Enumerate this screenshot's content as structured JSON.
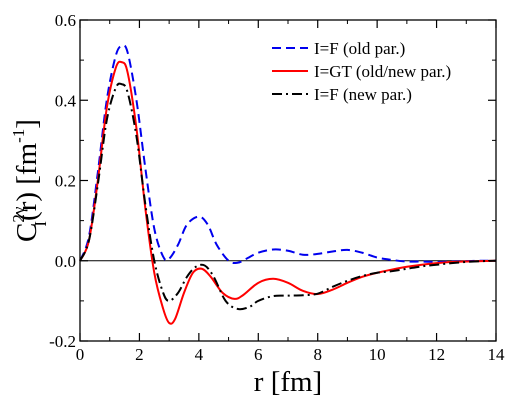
{
  "chart_data": {
    "type": "line",
    "title": "",
    "xlabel": "r [fm]",
    "ylabel": "C_I^{2γ}(r) [fm^{-1}]",
    "ylabel_parts": {
      "main": "C",
      "superscript": "2γ",
      "subscript": "I",
      "argument": "(r) [fm",
      "unit_exponent": "-1",
      "closing": "]"
    },
    "xlim": [
      0,
      14
    ],
    "ylim": [
      -0.2,
      0.6
    ],
    "x_ticks": [
      0,
      2,
      4,
      6,
      8,
      10,
      12,
      14
    ],
    "y_ticks": [
      -0.2,
      0.0,
      0.2,
      0.4,
      0.6
    ],
    "x_tick_labels": [
      "0",
      "2",
      "4",
      "6",
      "8",
      "10",
      "12",
      "14"
    ],
    "y_tick_labels": [
      "-0.2",
      "0.0",
      "0.2",
      "0.4",
      "0.6"
    ],
    "zero_line": true,
    "grid": false,
    "legend_position": "top-right",
    "series": [
      {
        "name": "I=F (old par.)",
        "color": "#0000ee",
        "dash": "dashed",
        "x": [
          0,
          0.3,
          0.6,
          0.9,
          1.2,
          1.4,
          1.6,
          1.9,
          2.2,
          2.5,
          2.8,
          3.0,
          3.3,
          3.6,
          4.0,
          4.3,
          4.6,
          5.0,
          5.3,
          5.6,
          6.0,
          6.5,
          7.0,
          7.5,
          8.0,
          8.5,
          9.0,
          9.5,
          10.0,
          10.5,
          11.0,
          11.5,
          12.0,
          12.5,
          13.0,
          13.5,
          14.0
        ],
        "y": [
          0,
          0.06,
          0.22,
          0.4,
          0.51,
          0.535,
          0.52,
          0.4,
          0.23,
          0.08,
          0.01,
          0.005,
          0.04,
          0.09,
          0.11,
          0.09,
          0.04,
          0.0,
          -0.005,
          0.005,
          0.02,
          0.028,
          0.025,
          0.015,
          0.017,
          0.023,
          0.027,
          0.02,
          0.008,
          0.002,
          -0.002,
          -0.002,
          -0.003,
          -0.002,
          -0.001,
          0.0,
          0.0
        ]
      },
      {
        "name": "I=GT (old/new par.)",
        "color": "#ff0000",
        "dash": "solid",
        "x": [
          0,
          0.3,
          0.6,
          0.9,
          1.2,
          1.4,
          1.6,
          1.9,
          2.2,
          2.5,
          2.8,
          3.0,
          3.2,
          3.5,
          3.8,
          4.1,
          4.4,
          4.8,
          5.2,
          5.5,
          6.0,
          6.5,
          7.0,
          7.5,
          8.0,
          8.5,
          9.0,
          9.5,
          10.0,
          10.5,
          11.0,
          11.5,
          12.0,
          12.5,
          13.0,
          13.5,
          14.0
        ],
        "y": [
          0,
          0.05,
          0.2,
          0.38,
          0.48,
          0.495,
          0.47,
          0.33,
          0.13,
          -0.03,
          -0.12,
          -0.155,
          -0.145,
          -0.08,
          -0.03,
          -0.02,
          -0.04,
          -0.08,
          -0.095,
          -0.085,
          -0.055,
          -0.045,
          -0.055,
          -0.075,
          -0.083,
          -0.072,
          -0.055,
          -0.04,
          -0.03,
          -0.022,
          -0.015,
          -0.01,
          -0.006,
          -0.003,
          -0.002,
          -0.001,
          0.0
        ]
      },
      {
        "name": "I=F (new par.)",
        "color": "#000000",
        "dash": "dashdot",
        "x": [
          0,
          0.3,
          0.6,
          0.9,
          1.2,
          1.4,
          1.6,
          1.9,
          2.2,
          2.5,
          2.8,
          3.0,
          3.3,
          3.6,
          3.9,
          4.2,
          4.5,
          4.9,
          5.3,
          5.7,
          6.0,
          6.5,
          7.0,
          7.5,
          8.0,
          8.5,
          9.0,
          9.5,
          10.0,
          10.5,
          11.0,
          11.5,
          12.0,
          12.5,
          13.0,
          13.5,
          14.0
        ],
        "y": [
          0,
          0.05,
          0.19,
          0.35,
          0.43,
          0.44,
          0.42,
          0.31,
          0.14,
          0.0,
          -0.08,
          -0.1,
          -0.08,
          -0.04,
          -0.015,
          -0.012,
          -0.04,
          -0.1,
          -0.12,
          -0.115,
          -0.1,
          -0.088,
          -0.087,
          -0.086,
          -0.082,
          -0.065,
          -0.05,
          -0.038,
          -0.03,
          -0.026,
          -0.02,
          -0.014,
          -0.01,
          -0.006,
          -0.003,
          -0.001,
          0.0
        ]
      }
    ]
  }
}
